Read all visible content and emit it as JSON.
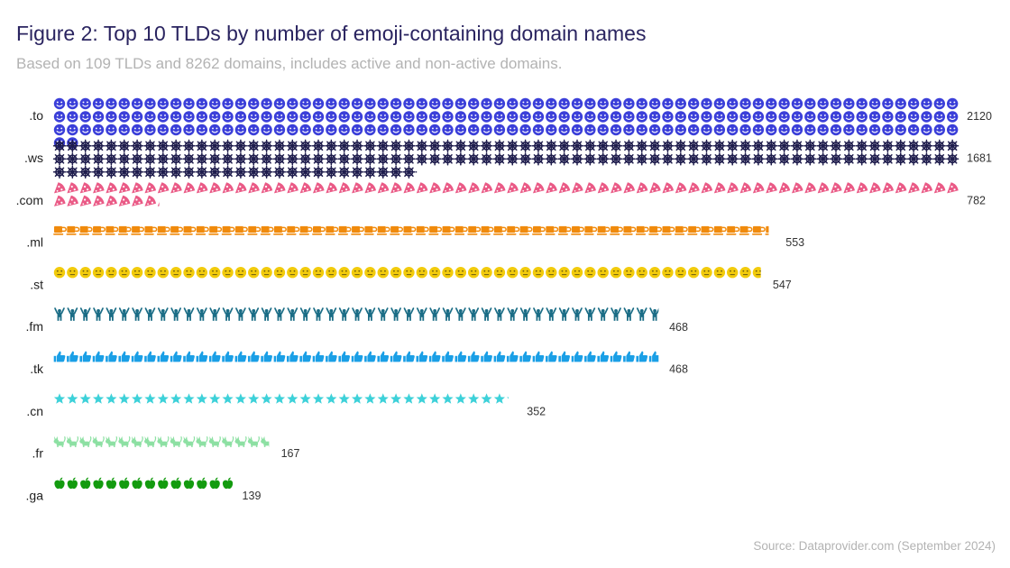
{
  "title": "Figure 2: Top 10 TLDs by number of emoji-containing domain names",
  "subtitle": "Based on 109 TLDs and 8262 domains, includes active and non-active domains.",
  "source": "Source: Dataprovider.com (September 2024)",
  "chart_data": {
    "type": "bar",
    "orientation": "horizontal",
    "style": "isotype pictogram rows",
    "categories": [
      ".to",
      ".ws",
      ".com",
      ".ml",
      ".st",
      ".fm",
      ".tk",
      ".cn",
      ".fr",
      ".ga"
    ],
    "values": [
      2120,
      1681,
      782,
      553,
      547,
      468,
      468,
      352,
      167,
      139
    ],
    "data_labels": [
      "2120",
      "1681",
      "782",
      "553",
      "547",
      "468",
      "468",
      "352",
      "167",
      "139"
    ],
    "icons": [
      "smiley-face-icon",
      "ship-wheel-icon",
      "pizza-slice-icon",
      "coffee-cup-icon",
      "neutral-face-icon",
      "person-arms-up-icon",
      "thumbs-up-icon",
      "star-icon",
      "cat-icon",
      "apple-icon"
    ],
    "colors": [
      "#3b3fd9",
      "#1f1d4d",
      "#ea5a86",
      "#f08a0c",
      "#f2cb0c",
      "#1b6d86",
      "#1a9fe6",
      "#3dd1d9",
      "#8de0a3",
      "#139b0f"
    ],
    "grid": false,
    "legend": "none"
  }
}
